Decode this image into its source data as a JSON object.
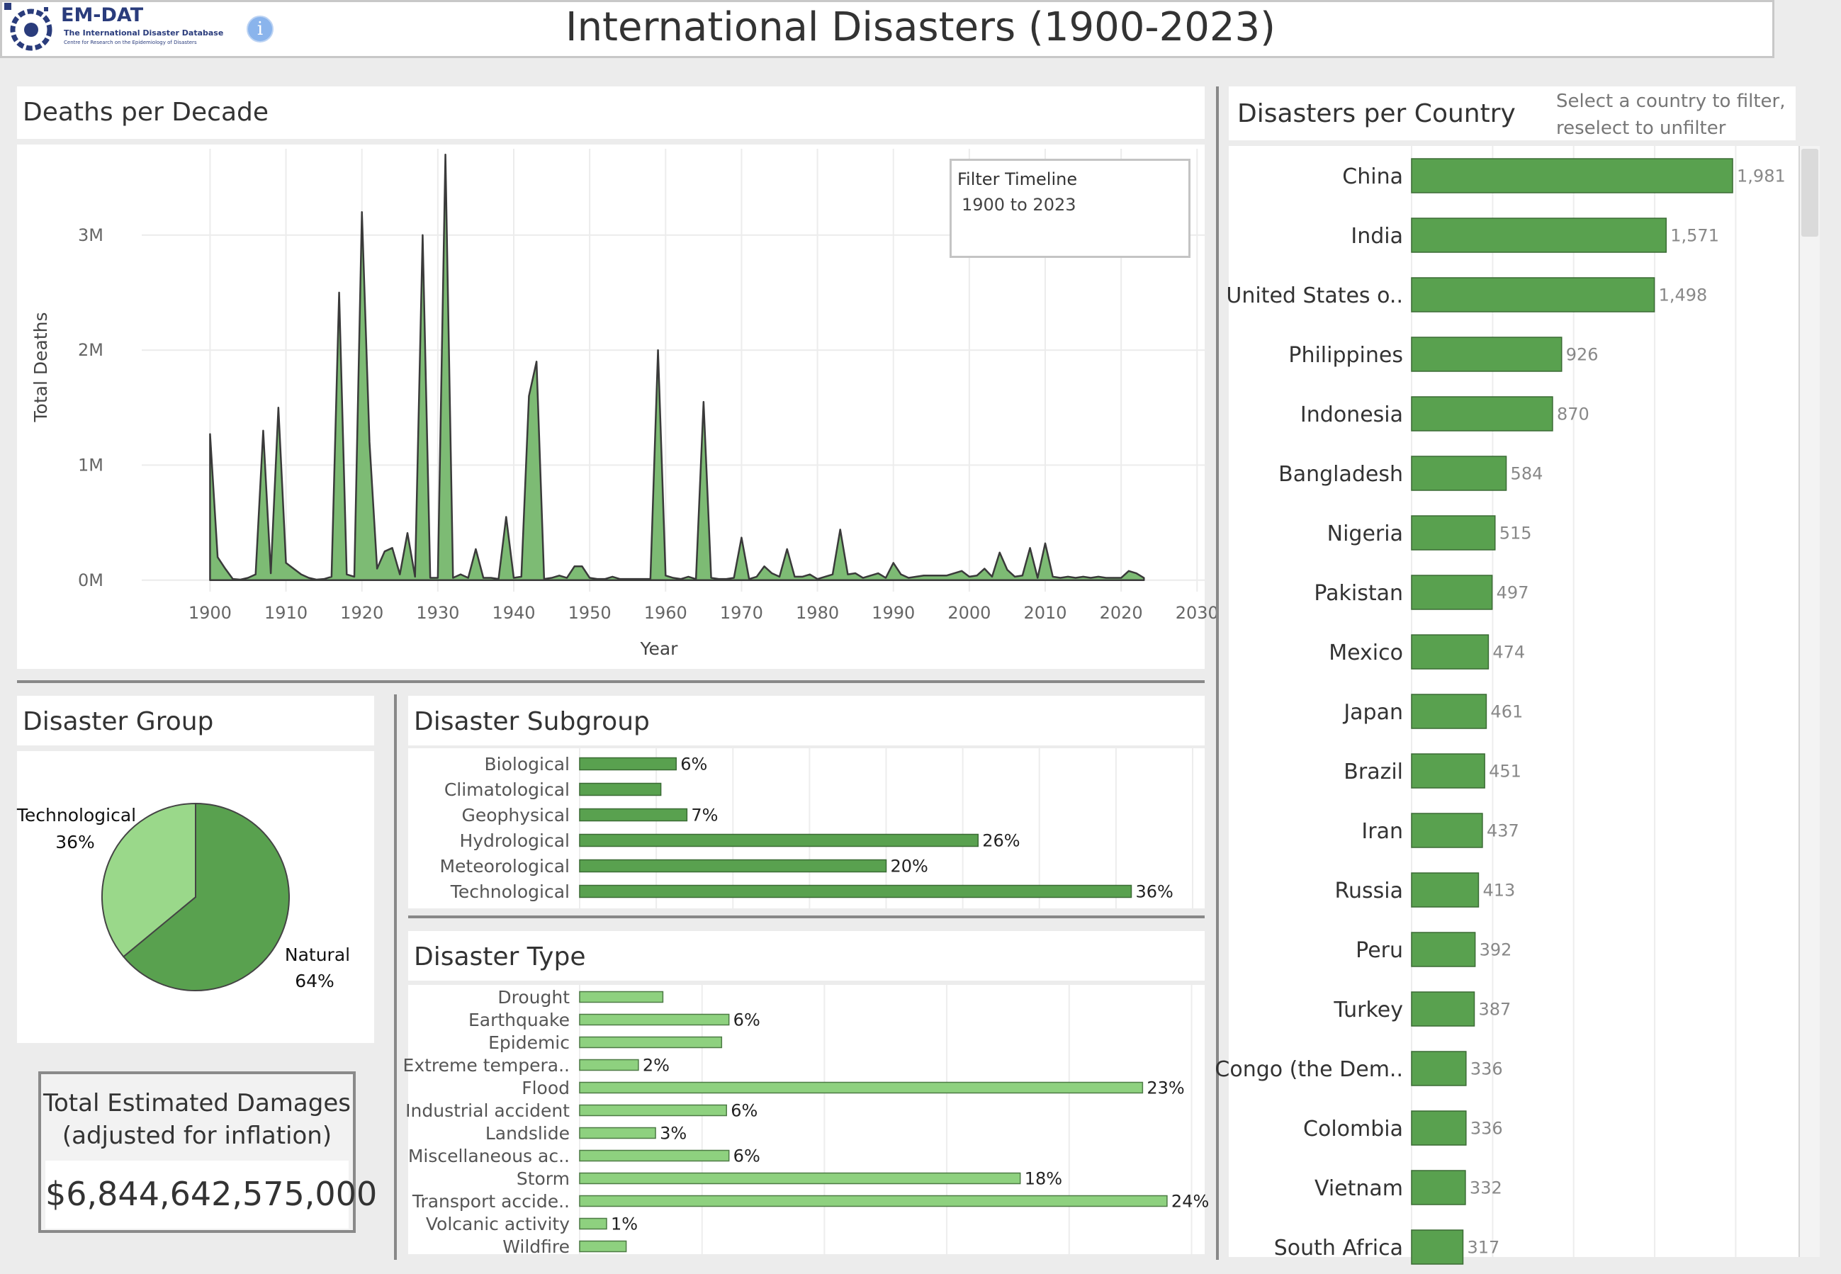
{
  "header": {
    "title": "International Disasters (1900-2023)",
    "logo_name": "EM-DAT",
    "logo_subtitle": "The International Disaster Database",
    "logo_subtitle2": "Centre for Research on the Epidemiology of Disasters",
    "info_icon": "info-icon"
  },
  "deaths_panel": {
    "title": "Deaths per Decade",
    "filter_title": "Filter Timeline",
    "filter_range": "1900 to 2023"
  },
  "group_panel": {
    "title": "Disaster Group"
  },
  "subgroup_panel": {
    "title": "Disaster Subgroup"
  },
  "type_panel": {
    "title": "Disaster Type"
  },
  "country_panel": {
    "title": "Disasters per Country",
    "hint_line1": "Select a country to filter,",
    "hint_line2": "reselect to unfilter"
  },
  "damages": {
    "title_line1": "Total Estimated Damages",
    "title_line2": "(adjusted for inflation)",
    "value": "$6,844,642,575,000"
  },
  "colors": {
    "bar_green": "#59a14f",
    "light_green": "#8ed17f",
    "pie_dark": "#59a14f",
    "pie_light": "#9ad88a",
    "area_fill": "#7dbb74",
    "area_line": "#3a3a3a"
  },
  "chart_data": [
    {
      "type": "area",
      "title": "Deaths per Decade",
      "xlabel": "Year",
      "ylabel": "Total Deaths",
      "xlim": [
        1891,
        2031
      ],
      "ylim": [
        -100000,
        3750000
      ],
      "x_ticks": [
        "1900",
        "1910",
        "1920",
        "1930",
        "1940",
        "1950",
        "1960",
        "1970",
        "1980",
        "1990",
        "2000",
        "2010",
        "2020",
        "2030"
      ],
      "y_ticks": [
        "0M",
        "1M",
        "2M",
        "3M"
      ],
      "y_tick_values": [
        0,
        1000000,
        2000000,
        3000000
      ],
      "x": [
        1900,
        1901,
        1902,
        1903,
        1904,
        1905,
        1906,
        1907,
        1908,
        1909,
        1910,
        1911,
        1912,
        1913,
        1914,
        1915,
        1916,
        1917,
        1918,
        1919,
        1920,
        1921,
        1922,
        1923,
        1924,
        1925,
        1926,
        1927,
        1928,
        1929,
        1930,
        1931,
        1932,
        1933,
        1934,
        1935,
        1936,
        1937,
        1938,
        1939,
        1940,
        1941,
        1942,
        1943,
        1944,
        1945,
        1946,
        1947,
        1948,
        1949,
        1950,
        1951,
        1952,
        1953,
        1954,
        1955,
        1956,
        1957,
        1958,
        1959,
        1960,
        1961,
        1962,
        1963,
        1964,
        1965,
        1966,
        1967,
        1968,
        1969,
        1970,
        1971,
        1972,
        1973,
        1974,
        1975,
        1976,
        1977,
        1978,
        1979,
        1980,
        1981,
        1982,
        1983,
        1984,
        1985,
        1986,
        1987,
        1988,
        1989,
        1990,
        1991,
        1992,
        1993,
        1994,
        1995,
        1996,
        1997,
        1998,
        1999,
        2000,
        2001,
        2002,
        2003,
        2004,
        2005,
        2006,
        2007,
        2008,
        2009,
        2010,
        2011,
        2012,
        2013,
        2014,
        2015,
        2016,
        2017,
        2018,
        2019,
        2020,
        2021,
        2022,
        2023
      ],
      "values": [
        1270000,
        200000,
        100000,
        10000,
        5000,
        20000,
        50000,
        1300000,
        60000,
        1500000,
        150000,
        100000,
        50000,
        20000,
        5000,
        10000,
        30000,
        2500000,
        50000,
        30000,
        3200000,
        1200000,
        100000,
        250000,
        280000,
        50000,
        410000,
        30000,
        3000000,
        20000,
        20000,
        3700000,
        20000,
        50000,
        20000,
        270000,
        20000,
        20000,
        10000,
        550000,
        20000,
        30000,
        1600000,
        1900000,
        10000,
        20000,
        40000,
        20000,
        120000,
        120000,
        20000,
        10000,
        10000,
        30000,
        10000,
        10000,
        10000,
        10000,
        10000,
        2000000,
        40000,
        20000,
        10000,
        30000,
        10000,
        1550000,
        20000,
        10000,
        10000,
        20000,
        370000,
        10000,
        30000,
        120000,
        60000,
        30000,
        270000,
        30000,
        30000,
        50000,
        10000,
        30000,
        50000,
        440000,
        50000,
        60000,
        20000,
        40000,
        60000,
        20000,
        150000,
        50000,
        20000,
        30000,
        40000,
        40000,
        40000,
        40000,
        60000,
        80000,
        30000,
        40000,
        100000,
        30000,
        240000,
        90000,
        30000,
        40000,
        280000,
        20000,
        320000,
        30000,
        20000,
        30000,
        20000,
        30000,
        20000,
        30000,
        20000,
        20000,
        20000,
        80000,
        60000,
        20000
      ]
    },
    {
      "type": "pie",
      "title": "Disaster Group",
      "categories": [
        "Natural",
        "Technological"
      ],
      "values": [
        64,
        36
      ],
      "labels": [
        "64%",
        "36%"
      ]
    },
    {
      "type": "bar",
      "orientation": "horizontal",
      "title": "Disaster Subgroup",
      "xlim": [
        0,
        40
      ],
      "categories": [
        "Biological",
        "Climatological",
        "Geophysical",
        "Hydrological",
        "Meteorological",
        "Technological"
      ],
      "values": [
        6.3,
        5.3,
        7.0,
        26.0,
        20.0,
        36.0
      ],
      "labels": [
        "6%",
        "",
        "7%",
        "26%",
        "20%",
        "36%"
      ]
    },
    {
      "type": "bar",
      "orientation": "horizontal",
      "title": "Disaster Type",
      "xlim": [
        0,
        26
      ],
      "categories": [
        "Drought",
        "Earthquake",
        "Epidemic",
        "Extreme tempera..",
        "Flood",
        "Industrial accident",
        "Landslide",
        "Miscellaneous ac..",
        "Storm",
        "Transport accide..",
        "Volcanic activity",
        "Wildfire"
      ],
      "values": [
        3.4,
        6.1,
        5.8,
        2.4,
        23.0,
        6.0,
        3.1,
        6.1,
        18.0,
        24.0,
        1.1,
        1.9
      ],
      "labels": [
        "",
        "6%",
        "",
        "2%",
        "23%",
        "6%",
        "3%",
        "6%",
        "18%",
        "24%",
        "1%",
        ""
      ]
    },
    {
      "type": "bar",
      "orientation": "horizontal",
      "title": "Disasters per Country",
      "xlim": [
        0,
        2300
      ],
      "categories": [
        "China",
        "India",
        "United States o..",
        "Philippines",
        "Indonesia",
        "Bangladesh",
        "Nigeria",
        "Pakistan",
        "Mexico",
        "Japan",
        "Brazil",
        "Iran",
        "Russia",
        "Peru",
        "Turkey",
        "Congo (the Dem..",
        "Colombia",
        "Vietnam",
        "South Africa"
      ],
      "values": [
        1981,
        1571,
        1498,
        926,
        870,
        584,
        515,
        497,
        474,
        461,
        451,
        437,
        413,
        392,
        387,
        336,
        336,
        332,
        317
      ],
      "labels": [
        "1,981",
        "1,571",
        "1,498",
        "926",
        "870",
        "584",
        "515",
        "497",
        "474",
        "461",
        "451",
        "437",
        "413",
        "392",
        "387",
        "336",
        "336",
        "332",
        "317"
      ]
    }
  ]
}
